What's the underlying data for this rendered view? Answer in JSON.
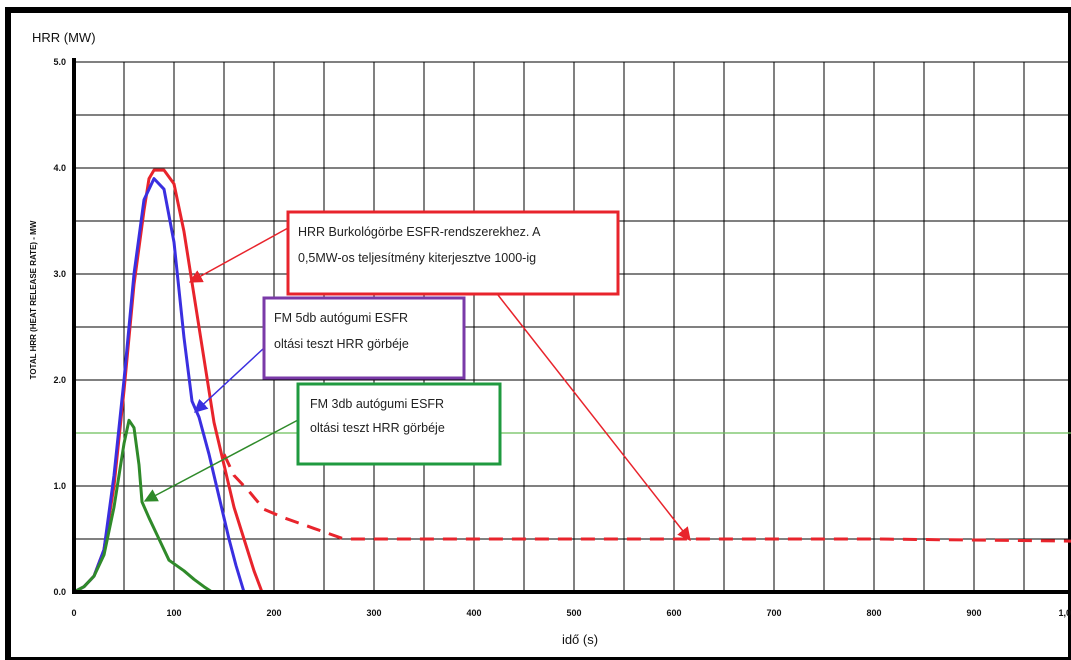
{
  "chart_data": {
    "type": "line",
    "title": "",
    "xlabel": "idő (s)",
    "ylabel_top": "HRR (MW)",
    "ylabel_side": "TOTAL HRR (HEAT RELEASE RATE) - MW",
    "xlim": [
      0,
      1000
    ],
    "ylim": [
      0,
      5
    ],
    "x_ticks": [
      "0",
      "100",
      "200",
      "300",
      "400",
      "500",
      "600",
      "700",
      "800",
      "900",
      "1,0"
    ],
    "y_ticks": [
      "0.0",
      "1.0",
      "2.0",
      "3.0",
      "4.0",
      "5.0"
    ],
    "grid": true,
    "reference_line": {
      "y": 1.5,
      "color": "#6cbf5a"
    },
    "series": [
      {
        "name": "HRR Burkológörbe ESFR-rendszerekhez",
        "color": "#e8242c",
        "style": "solid",
        "points": [
          [
            0,
            0
          ],
          [
            10,
            0.05
          ],
          [
            20,
            0.15
          ],
          [
            30,
            0.4
          ],
          [
            40,
            1.0
          ],
          [
            50,
            1.9
          ],
          [
            60,
            2.9
          ],
          [
            70,
            3.6
          ],
          [
            75,
            3.9
          ],
          [
            80,
            3.98
          ],
          [
            90,
            3.98
          ],
          [
            100,
            3.85
          ],
          [
            110,
            3.4
          ],
          [
            120,
            2.8
          ],
          [
            130,
            2.2
          ],
          [
            140,
            1.6
          ],
          [
            150,
            1.2
          ],
          [
            160,
            0.8
          ],
          [
            170,
            0.5
          ],
          [
            180,
            0.2
          ],
          [
            188,
            0
          ]
        ]
      },
      {
        "name": "HRR Burkológörbe ESFR-rendszerekhez (kiterjesztés)",
        "color": "#e8242c",
        "style": "dashed",
        "points": [
          [
            150,
            1.3
          ],
          [
            160,
            1.1
          ],
          [
            175,
            0.95
          ],
          [
            190,
            0.78
          ],
          [
            210,
            0.7
          ],
          [
            240,
            0.6
          ],
          [
            270,
            0.5
          ],
          [
            400,
            0.5
          ],
          [
            600,
            0.5
          ],
          [
            800,
            0.5
          ],
          [
            1000,
            0.48
          ]
        ]
      },
      {
        "name": "FM 5db autógumi ESFR oltási teszt",
        "color": "#3a2fe0",
        "style": "solid",
        "points": [
          [
            0,
            0
          ],
          [
            10,
            0.05
          ],
          [
            20,
            0.15
          ],
          [
            30,
            0.4
          ],
          [
            40,
            1.1
          ],
          [
            50,
            2.0
          ],
          [
            60,
            3.0
          ],
          [
            70,
            3.7
          ],
          [
            80,
            3.9
          ],
          [
            90,
            3.8
          ],
          [
            100,
            3.3
          ],
          [
            110,
            2.4
          ],
          [
            118,
            1.8
          ],
          [
            125,
            1.65
          ],
          [
            135,
            1.3
          ],
          [
            145,
            0.9
          ],
          [
            155,
            0.5
          ],
          [
            162,
            0.25
          ],
          [
            170,
            0
          ]
        ]
      },
      {
        "name": "FM 3db autógumi ESFR oltási teszt",
        "color": "#2f8a2a",
        "style": "solid",
        "points": [
          [
            0,
            0
          ],
          [
            10,
            0.05
          ],
          [
            20,
            0.15
          ],
          [
            30,
            0.35
          ],
          [
            40,
            0.8
          ],
          [
            50,
            1.4
          ],
          [
            55,
            1.62
          ],
          [
            60,
            1.55
          ],
          [
            65,
            1.2
          ],
          [
            68,
            0.85
          ],
          [
            75,
            0.7
          ],
          [
            85,
            0.5
          ],
          [
            95,
            0.3
          ],
          [
            110,
            0.2
          ],
          [
            120,
            0.12
          ],
          [
            130,
            0.05
          ],
          [
            138,
            0
          ]
        ]
      }
    ],
    "annotations": [
      {
        "lines": [
          "HRR Burkológörbe ESFR-rendszerekhez. A",
          "0,5MW-os teljesítmény kiterjesztve 1000-ig"
        ],
        "border": "#e8242c",
        "arrow_color": "#e8242c"
      },
      {
        "lines": [
          "FM 5db autógumi ESFR",
          "oltási teszt HRR görbéje"
        ],
        "border": "#7a3aa8",
        "arrow_color": "#3a2fe0"
      },
      {
        "lines": [
          "FM 3db autógumi ESFR",
          "oltási teszt HRR görbéje"
        ],
        "border": "#1f9a3f",
        "arrow_color": "#2f8a2a"
      }
    ]
  }
}
